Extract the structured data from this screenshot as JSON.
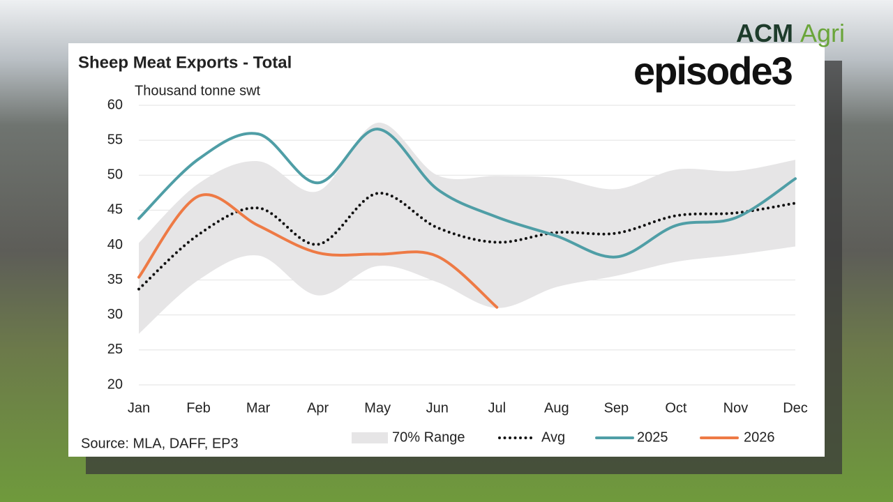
{
  "branding": {
    "logo_a": "ACM",
    "logo_b": "Agri",
    "show": "episode3"
  },
  "chart_data": {
    "type": "line",
    "title": "Sheep Meat Exports - Total",
    "ylabel": "Thousand tonne swt",
    "source": "Source: MLA, DAFF, EP3",
    "categories": [
      "Jan",
      "Feb",
      "Mar",
      "Apr",
      "May",
      "Jun",
      "Jul",
      "Aug",
      "Sep",
      "Oct",
      "Nov",
      "Dec"
    ],
    "ylim": [
      20,
      60
    ],
    "yticks": [
      20,
      25,
      30,
      35,
      40,
      45,
      50,
      55,
      60
    ],
    "grid": true,
    "legend": "bottom",
    "band": {
      "name": "70% Range",
      "color": "#e6e5e6",
      "upper": [
        40.3,
        48.8,
        52,
        47.7,
        57.5,
        50,
        49.9,
        49.6,
        48,
        50.8,
        50.6,
        52.2
      ],
      "lower": [
        27.3,
        35,
        38.5,
        32.8,
        37,
        34.7,
        31,
        34,
        35.6,
        37.6,
        38.6,
        39.8
      ]
    },
    "series": [
      {
        "name": "Avg",
        "color": "#111111",
        "style": "dotted",
        "values": [
          33.7,
          41.5,
          45.3,
          40.1,
          47.4,
          42.5,
          40.4,
          41.8,
          41.7,
          44.2,
          44.6,
          46
        ]
      },
      {
        "name": "2025",
        "color": "#4f9ea6",
        "style": "solid",
        "values": [
          43.8,
          52.3,
          55.9,
          48.9,
          56.6,
          48,
          44,
          41.3,
          38.3,
          42.8,
          43.9,
          49.5
        ]
      },
      {
        "name": "2026",
        "color": "#ee7a45",
        "style": "solid",
        "values": [
          35.4,
          47,
          42.8,
          38.9,
          38.7,
          38.4,
          31.1,
          null,
          null,
          null,
          null,
          null
        ]
      }
    ]
  }
}
